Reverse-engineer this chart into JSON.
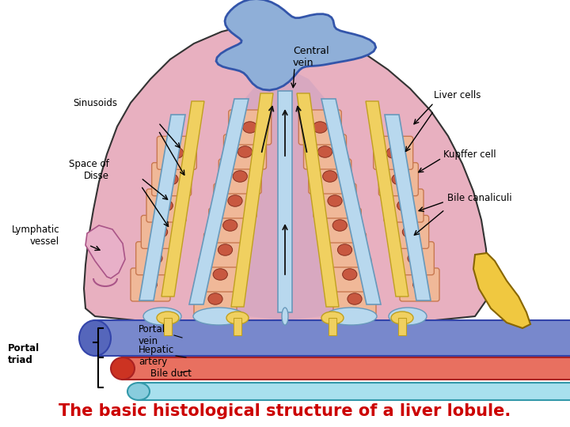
{
  "title": "The basic histological structure of a liver lobule.",
  "title_color": "#cc0000",
  "title_fontsize": 15,
  "bg_color": "#ffffff",
  "fig_width": 7.2,
  "fig_height": 5.4,
  "dpi": 100,
  "labels": {
    "central_vein": "Central\nvein",
    "sinusoids": "Sinusoids",
    "liver_cells": "Liver cells",
    "space_disse": "Space of\nDisse",
    "kupffer_cell": "Kupffer cell",
    "bile_canaliculi": "Bile canaliculi",
    "lymphatic_vessel": "Lymphatic\nvessel",
    "portal_vein": "Portal\nvein",
    "hepatic_artery": "Hepatic\nartery",
    "bile_duct": "Bile duct",
    "portal_triad": "Portal\ntriad"
  },
  "colors": {
    "central_vein_fill": "#8fafd8",
    "central_vein_edge": "#3355aa",
    "lobule_outer": "#dda0b0",
    "lobule_inner": "#e8b8c8",
    "sinusoid_bg": "#c8a0c0",
    "hepatocyte_fill": "#f0b898",
    "hepatocyte_edge": "#c87850",
    "nucleus_fill": "#c85840",
    "nucleus_edge": "#883020",
    "bile_can": "#f0d060",
    "bile_can_edge": "#c0a020",
    "sinusoid_channel": "#b8d8ee",
    "sinusoid_channel_edge": "#6899bb",
    "portal_vein_fill": "#7888cc",
    "portal_vein_edge": "#3344aa",
    "hepatic_artery_fill": "#e87060",
    "hepatic_artery_edge": "#aa2222",
    "bile_duct_fill": "#a8e0ee",
    "bile_duct_edge": "#3399aa",
    "lymph_fill": "#d0a8b8",
    "lymph_edge": "#886688",
    "yellow_vessel": "#f0c840",
    "yellow_edge": "#886600",
    "outline": "#333333",
    "arrow_color": "#111111"
  }
}
